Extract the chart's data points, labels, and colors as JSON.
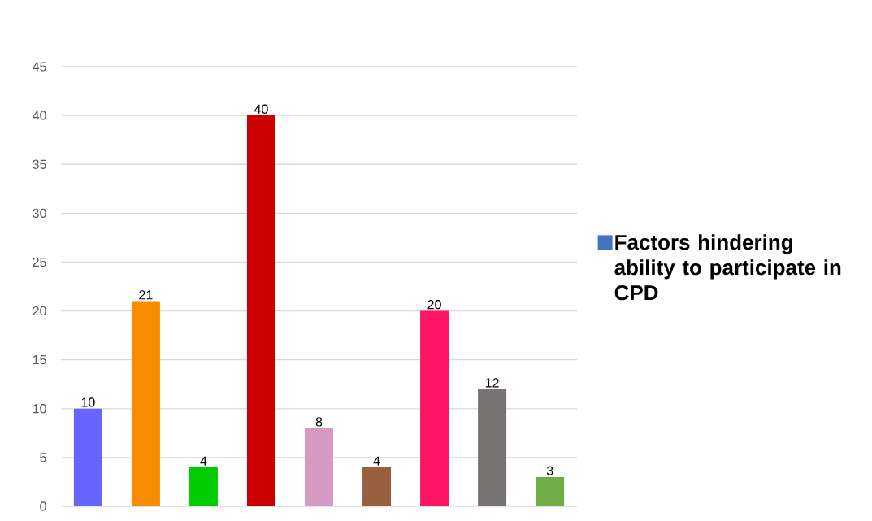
{
  "chart_data": {
    "type": "bar",
    "categories": [
      null,
      null,
      null,
      null,
      null,
      null,
      null,
      null,
      null
    ],
    "series": [
      {
        "name": "Factors hindering ability to participate in CPD",
        "color": "#4472c4",
        "values": [
          10,
          21,
          4,
          40,
          8,
          4,
          20,
          12,
          3
        ],
        "colors": [
          "#6666ff",
          "#f78c00",
          "#00cc00",
          "#cc0000",
          "#d599c4",
          "#996040",
          "#ff1466",
          "#777373",
          "#70ad47"
        ]
      }
    ],
    "ylim": [
      0,
      45
    ],
    "yticks": [
      0,
      5,
      10,
      15,
      20,
      25,
      30,
      35,
      40,
      45
    ],
    "grid": "y",
    "legend": "right",
    "data_labels": true
  }
}
